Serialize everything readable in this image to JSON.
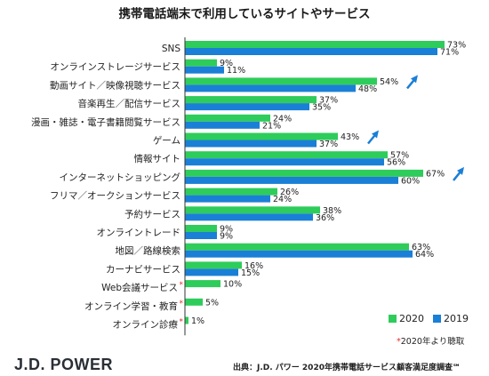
{
  "chart_data": {
    "type": "bar",
    "orientation": "horizontal",
    "title": "携帯電話端末で利用しているサイトやサービス",
    "categories": [
      "SNS",
      "オンラインストレージサービス",
      "動画サイト／映像視聴サービス",
      "音楽再生／配信サービス",
      "漫画・雑誌・電子書籍閲覧サービス",
      "ゲーム",
      "情報サイト",
      "インターネットショッピング",
      "フリマ／オークションサービス",
      "予約サービス",
      "オンライントレード",
      "地図／路線検索",
      "カーナビサービス",
      "Web会議サービス",
      "オンライン学習・教育",
      "オンライン診療"
    ],
    "new_since_2020": [
      false,
      false,
      false,
      false,
      false,
      false,
      false,
      false,
      false,
      false,
      false,
      false,
      false,
      true,
      true,
      true
    ],
    "increase_arrow": [
      false,
      false,
      true,
      false,
      false,
      true,
      false,
      true,
      false,
      false,
      false,
      false,
      false,
      false,
      false,
      false
    ],
    "series": [
      {
        "name": "2020",
        "color": "#2ecc5a",
        "values": [
          73,
          9,
          54,
          37,
          24,
          43,
          57,
          67,
          26,
          38,
          9,
          63,
          16,
          10,
          5,
          1
        ]
      },
      {
        "name": "2019",
        "color": "#1a7fd6",
        "values": [
          71,
          11,
          48,
          35,
          21,
          37,
          56,
          60,
          24,
          36,
          9,
          64,
          15,
          null,
          null,
          null
        ]
      }
    ],
    "xlim": [
      0,
      80
    ],
    "grid": false,
    "legend_position": "bottom-right",
    "arrow_color": "#1a7fd6"
  },
  "legend": {
    "items": [
      "2020",
      "2019"
    ]
  },
  "note": {
    "mark": "*",
    "text": "2020年より聴取"
  },
  "brand": "J.D. POWER",
  "source": "出典：J.D. パワー 2020年携帯電話サービス顧客満足度調査℠"
}
